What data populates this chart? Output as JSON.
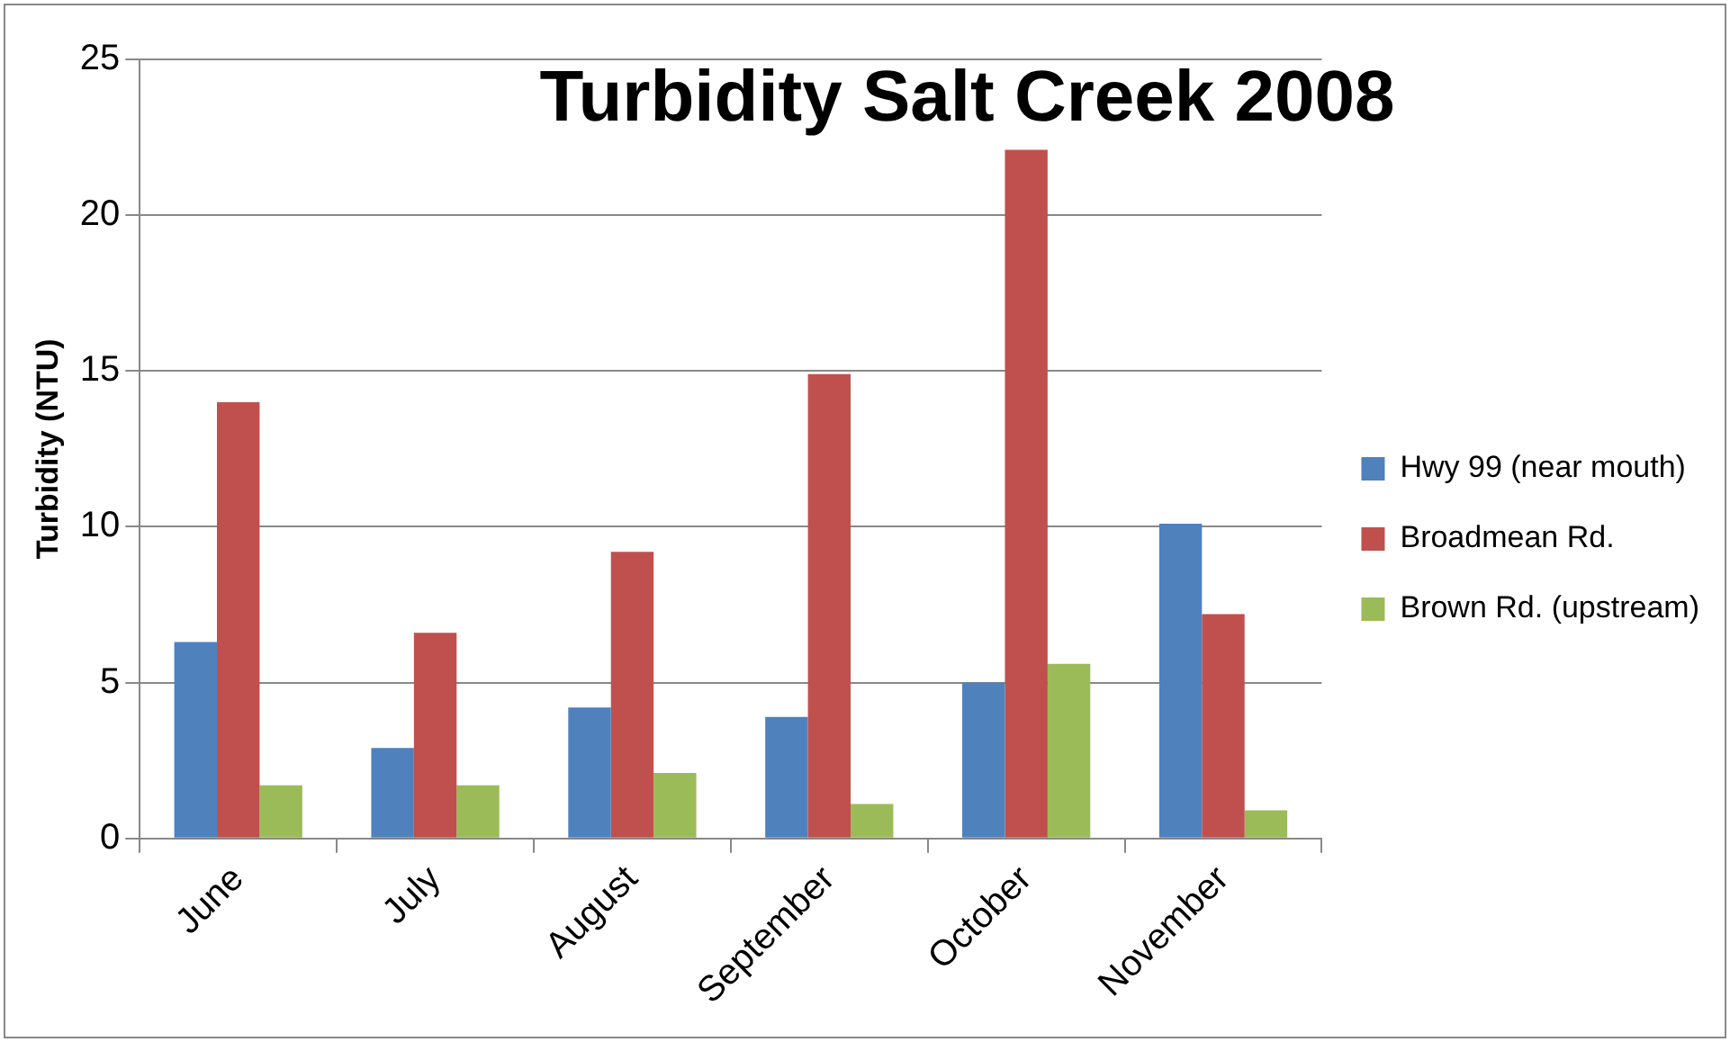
{
  "chart_data": {
    "type": "bar",
    "title": "Turbidity Salt Creek 2008",
    "ylabel": "Turbidity (NTU)",
    "categories": [
      "June",
      "July",
      "August",
      "September",
      "October",
      "November"
    ],
    "series": [
      {
        "name": "Hwy 99 (near mouth)",
        "color": "#4f81bd",
        "values": [
          6.3,
          2.9,
          4.2,
          3.9,
          5.0,
          10.1
        ]
      },
      {
        "name": "Broadmean Rd.",
        "color": "#c0504d",
        "values": [
          14.0,
          6.6,
          9.2,
          14.9,
          22.1,
          7.2
        ]
      },
      {
        "name": "Brown Rd. (upstream)",
        "color": "#9bbb59",
        "values": [
          1.7,
          1.7,
          2.1,
          1.1,
          5.6,
          0.9
        ]
      }
    ],
    "ylim": [
      0,
      25
    ],
    "yticks": [
      0,
      5,
      10,
      15,
      20,
      25
    ],
    "grid": "y",
    "legend": "right"
  }
}
